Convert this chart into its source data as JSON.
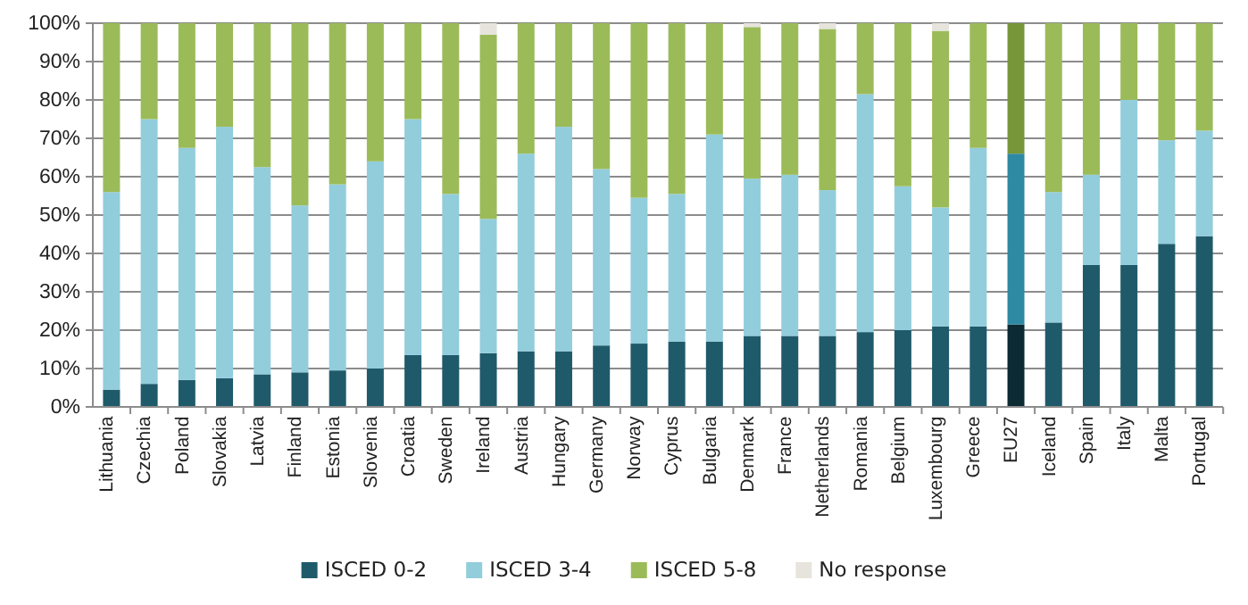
{
  "chart_data": {
    "type": "bar",
    "stacked": true,
    "categories": [
      "Lithuania",
      "Czechia",
      "Poland",
      "Slovakia",
      "Latvia",
      "Finland",
      "Estonia",
      "Slovenia",
      "Croatia",
      "Sweden",
      "Ireland",
      "Austria",
      "Hungary",
      "Germany",
      "Norway",
      "Cyprus",
      "Bulgaria",
      "Denmark",
      "France",
      "Netherlands",
      "Romania",
      "Belgium",
      "Luxembourg",
      "Greece",
      "EU27",
      "Iceland",
      "Spain",
      "Italy",
      "Malta",
      "Portugal"
    ],
    "series": [
      {
        "name": "ISCED 0-2",
        "color": "#1f5a6b",
        "colors": [
          "#1f5a6b",
          "#1f5a6b",
          "#1f5a6b",
          "#1f5a6b",
          "#1f5a6b",
          "#1f5a6b",
          "#1f5a6b",
          "#1f5a6b",
          "#1f5a6b",
          "#1f5a6b",
          "#1f5a6b",
          "#1f5a6b",
          "#1f5a6b",
          "#1f5a6b",
          "#1f5a6b",
          "#1f5a6b",
          "#1f5a6b",
          "#1f5a6b",
          "#1f5a6b",
          "#1f5a6b",
          "#1f5a6b",
          "#1f5a6b",
          "#1f5a6b",
          "#1f5a6b",
          "#0b2a33",
          "#1f5a6b",
          "#1f5a6b",
          "#1f5a6b",
          "#1f5a6b",
          "#1f5a6b"
        ],
        "values": [
          4.5,
          6,
          7,
          7.5,
          8.5,
          9,
          9.5,
          10,
          13.5,
          13.5,
          14,
          14.5,
          14.5,
          16,
          16.5,
          17,
          17,
          18.5,
          18.5,
          18.5,
          19.5,
          20,
          21,
          21,
          21.5,
          22,
          37,
          37,
          42.5,
          44.5
        ]
      },
      {
        "name": "ISCED 3-4",
        "color": "#92cddc",
        "colors": [
          "#92cddc",
          "#92cddc",
          "#92cddc",
          "#92cddc",
          "#92cddc",
          "#92cddc",
          "#92cddc",
          "#92cddc",
          "#92cddc",
          "#92cddc",
          "#92cddc",
          "#92cddc",
          "#92cddc",
          "#92cddc",
          "#92cddc",
          "#92cddc",
          "#92cddc",
          "#92cddc",
          "#92cddc",
          "#92cddc",
          "#92cddc",
          "#92cddc",
          "#92cddc",
          "#92cddc",
          "#2e89a3",
          "#92cddc",
          "#92cddc",
          "#92cddc",
          "#92cddc",
          "#92cddc"
        ],
        "values": [
          51.5,
          69,
          60.5,
          65.5,
          54,
          43.5,
          48.5,
          54,
          61.5,
          42,
          35,
          51.5,
          58.5,
          46,
          38,
          38.5,
          54,
          41,
          42,
          38,
          62,
          37.5,
          31,
          46.5,
          44.5,
          34,
          23.5,
          43,
          27,
          27.5
        ]
      },
      {
        "name": "ISCED 5-8",
        "color": "#9bbb59",
        "colors": [
          "#9bbb59",
          "#9bbb59",
          "#9bbb59",
          "#9bbb59",
          "#9bbb59",
          "#9bbb59",
          "#9bbb59",
          "#9bbb59",
          "#9bbb59",
          "#9bbb59",
          "#9bbb59",
          "#9bbb59",
          "#9bbb59",
          "#9bbb59",
          "#9bbb59",
          "#9bbb59",
          "#9bbb59",
          "#9bbb59",
          "#9bbb59",
          "#9bbb59",
          "#9bbb59",
          "#9bbb59",
          "#9bbb59",
          "#9bbb59",
          "#77963a",
          "#9bbb59",
          "#9bbb59",
          "#9bbb59",
          "#9bbb59",
          "#9bbb59"
        ],
        "values": [
          44,
          25,
          32.5,
          27,
          37.5,
          47.5,
          42,
          36,
          25,
          44.5,
          48,
          34,
          27,
          38,
          45.5,
          44.5,
          29,
          39.5,
          39.5,
          42,
          18.5,
          42.5,
          46,
          32.5,
          34,
          44,
          39.5,
          20,
          30.5,
          28
        ]
      },
      {
        "name": "No response",
        "color": "#e6e4dc",
        "values": [
          null,
          null,
          null,
          null,
          null,
          null,
          null,
          null,
          null,
          null,
          3,
          null,
          null,
          null,
          null,
          null,
          null,
          1,
          null,
          1.5,
          null,
          null,
          2,
          null,
          null,
          null,
          null,
          null,
          null,
          null
        ]
      }
    ],
    "ylim": [
      0,
      100
    ],
    "yticks": [
      {
        "value": 0,
        "label": "0%"
      },
      {
        "value": 10,
        "label": "10%"
      },
      {
        "value": 20,
        "label": "20%"
      },
      {
        "value": 30,
        "label": "30%"
      },
      {
        "value": 40,
        "label": "40%"
      },
      {
        "value": 50,
        "label": "50%"
      },
      {
        "value": 60,
        "label": "60%"
      },
      {
        "value": 70,
        "label": "70%"
      },
      {
        "value": 80,
        "label": "80%"
      },
      {
        "value": 90,
        "label": "90%"
      },
      {
        "value": 100,
        "label": "100%"
      }
    ],
    "grid": "y",
    "legend": "bottom"
  }
}
